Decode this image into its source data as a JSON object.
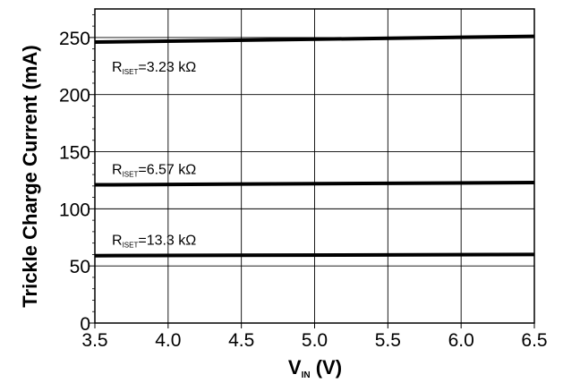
{
  "chart_data": {
    "type": "line",
    "xlabel_main": "V",
    "xlabel_sub": "IN",
    "xlabel_unit": " (V)",
    "ylabel": "Trickle Charge Current (mA)",
    "xlim": [
      3.5,
      6.5
    ],
    "ylim": [
      0,
      275
    ],
    "xticks": [
      "3.5",
      "4.0",
      "4.5",
      "5.0",
      "5.5",
      "6.0",
      "6.5"
    ],
    "yticks": [
      "0",
      "50",
      "100",
      "150",
      "200",
      "250"
    ],
    "grid": true,
    "series": [
      {
        "label_main": "R",
        "label_sub": "ISET",
        "label_value": "=3.23 kΩ",
        "x": [
          3.5,
          6.5
        ],
        "y": [
          246,
          251
        ]
      },
      {
        "label_main": "R",
        "label_sub": "ISET",
        "label_value": "=6.57 kΩ",
        "x": [
          3.5,
          6.5
        ],
        "y": [
          121,
          123
        ]
      },
      {
        "label_main": "R",
        "label_sub": "ISET",
        "label_value": "=13.3 kΩ",
        "x": [
          3.5,
          6.5
        ],
        "y": [
          59,
          60
        ]
      }
    ]
  }
}
